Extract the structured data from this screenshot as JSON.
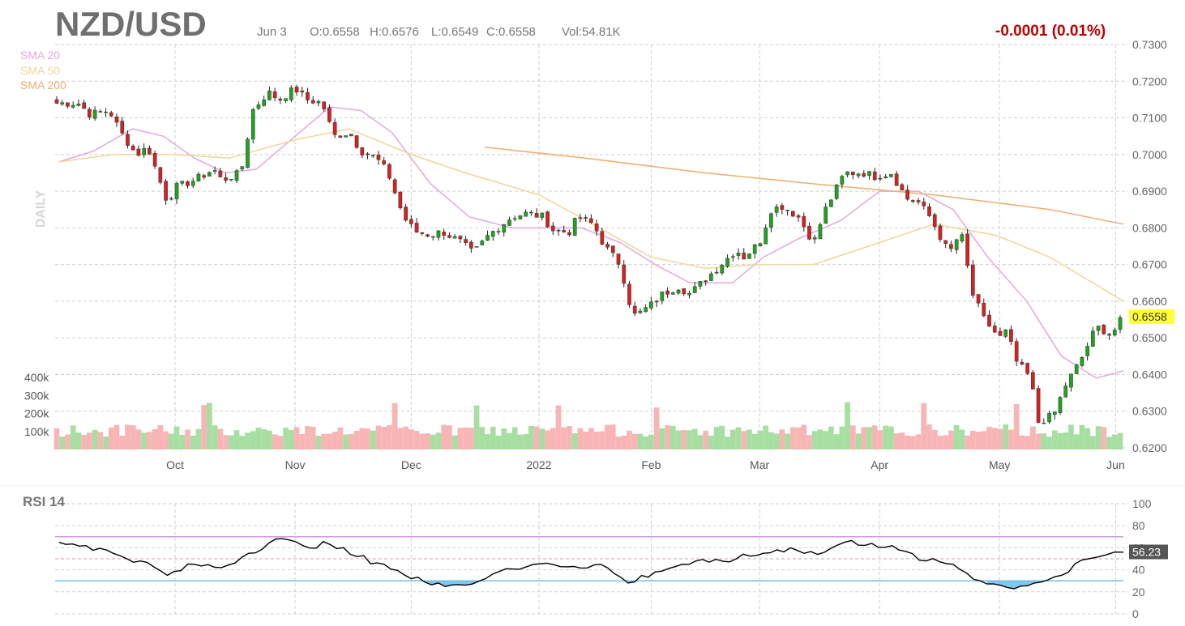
{
  "header": {
    "symbol": "NZD/USD",
    "date": "Jun 3",
    "open": "O:0.6558",
    "high": "H:0.6576",
    "low": "L:0.6549",
    "close": "C:0.6558",
    "volume": "Vol:54.81K",
    "change": "-0.0001 (0.01%)",
    "interval_label": "DAILY",
    "last_price": "0.6558"
  },
  "legend": [
    {
      "label": "SMA 20",
      "color": "#e7a7df"
    },
    {
      "label": "SMA 50",
      "color": "#f2d59a"
    },
    {
      "label": "SMA 200",
      "color": "#f0ac6e"
    }
  ],
  "colors": {
    "up": "#1ea41e",
    "down": "#d72020",
    "vol_up": "#a6dfa1",
    "vol_down": "#f8b5b5",
    "grid": "#cfcfcf",
    "rsi_line": "#000000",
    "rsi_upper": "#c07ad6",
    "rsi_lower": "#4aa8d8",
    "rsi_fill": "#7cc8ef",
    "highlight": "#ffff33",
    "change": "#c00000"
  },
  "chart_data": [
    {
      "type": "candlestick",
      "title": "NZD/USD",
      "x_labels": [
        "Oct",
        "Nov",
        "Dec",
        "2022",
        "Feb",
        "Mar",
        "Apr",
        "May",
        "Jun"
      ],
      "y_ticks": [
        "0.6200",
        "0.6300",
        "0.6400",
        "0.6500",
        "0.6600",
        "0.6700",
        "0.6800",
        "0.6900",
        "0.7000",
        "0.7100",
        "0.7200",
        "0.7300"
      ],
      "ylim": [
        0.62,
        0.73
      ],
      "volume_ticks": [
        "100k",
        "200k",
        "300k",
        "400k"
      ],
      "volume_max": 450000,
      "path_points": [
        [
          "2021-09-06",
          0.714
        ],
        [
          "2021-09-09",
          0.711
        ],
        [
          "2021-09-14",
          0.712
        ],
        [
          "2021-09-17",
          0.706
        ],
        [
          "2021-09-21",
          0.7
        ],
        [
          "2021-09-24",
          0.702
        ],
        [
          "2021-09-29",
          0.687
        ],
        [
          "2021-10-01",
          0.691
        ],
        [
          "2021-10-06",
          0.693
        ],
        [
          "2021-10-11",
          0.696
        ],
        [
          "2021-10-13",
          0.693
        ],
        [
          "2021-10-18",
          0.695
        ],
        [
          "2021-10-21",
          0.712
        ],
        [
          "2021-10-25",
          0.717
        ],
        [
          "2021-10-28",
          0.715
        ],
        [
          "2021-11-01",
          0.718
        ],
        [
          "2021-11-04",
          0.715
        ],
        [
          "2021-11-08",
          0.714
        ],
        [
          "2021-11-11",
          0.705
        ],
        [
          "2021-11-15",
          0.706
        ],
        [
          "2021-11-18",
          0.701
        ],
        [
          "2021-11-22",
          0.699
        ],
        [
          "2021-11-25",
          0.695
        ],
        [
          "2021-11-29",
          0.683
        ],
        [
          "2021-12-02",
          0.679
        ],
        [
          "2021-12-06",
          0.678
        ],
        [
          "2021-12-09",
          0.679
        ],
        [
          "2021-12-14",
          0.676
        ],
        [
          "2021-12-17",
          0.673
        ],
        [
          "2021-12-21",
          0.678
        ],
        [
          "2021-12-27",
          0.683
        ],
        [
          "2021-12-31",
          0.684
        ],
        [
          "2022-01-04",
          0.683
        ],
        [
          "2022-01-07",
          0.679
        ],
        [
          "2022-01-11",
          0.679
        ],
        [
          "2022-01-13",
          0.683
        ],
        [
          "2022-01-17",
          0.681
        ],
        [
          "2022-01-20",
          0.675
        ],
        [
          "2022-01-24",
          0.67
        ],
        [
          "2022-01-27",
          0.657
        ],
        [
          "2022-01-28",
          0.656
        ],
        [
          "2022-02-01",
          0.659
        ],
        [
          "2022-02-04",
          0.662
        ],
        [
          "2022-02-08",
          0.664
        ],
        [
          "2022-02-11",
          0.662
        ],
        [
          "2022-02-15",
          0.666
        ],
        [
          "2022-02-18",
          0.669
        ],
        [
          "2022-02-23",
          0.674
        ],
        [
          "2022-02-25",
          0.672
        ],
        [
          "2022-03-01",
          0.676
        ],
        [
          "2022-03-04",
          0.685
        ],
        [
          "2022-03-07",
          0.686
        ],
        [
          "2022-03-11",
          0.683
        ],
        [
          "2022-03-15",
          0.676
        ],
        [
          "2022-03-18",
          0.685
        ],
        [
          "2022-03-23",
          0.695
        ],
        [
          "2022-03-28",
          0.695
        ],
        [
          "2022-03-31",
          0.694
        ],
        [
          "2022-04-04",
          0.695
        ],
        [
          "2022-04-08",
          0.688
        ],
        [
          "2022-04-11",
          0.687
        ],
        [
          "2022-04-14",
          0.683
        ],
        [
          "2022-04-19",
          0.673
        ],
        [
          "2022-04-22",
          0.679
        ],
        [
          "2022-04-25",
          0.662
        ],
        [
          "2022-04-28",
          0.655
        ],
        [
          "2022-05-02",
          0.65
        ],
        [
          "2022-05-04",
          0.652
        ],
        [
          "2022-05-06",
          0.644
        ],
        [
          "2022-05-10",
          0.639
        ],
        [
          "2022-05-12",
          0.627
        ],
        [
          "2022-05-16",
          0.629
        ],
        [
          "2022-05-19",
          0.637
        ],
        [
          "2022-05-23",
          0.644
        ],
        [
          "2022-05-27",
          0.653
        ],
        [
          "2022-05-31",
          0.651
        ],
        [
          "2022-06-03",
          0.6558
        ]
      ],
      "series": [
        {
          "name": "SMA 20",
          "points": [
            [
              "2021-09-01",
              0.698
            ],
            [
              "2021-09-10",
              0.701
            ],
            [
              "2021-09-20",
              0.707
            ],
            [
              "2021-09-28",
              0.705
            ],
            [
              "2021-10-06",
              0.699
            ],
            [
              "2021-10-14",
              0.695
            ],
            [
              "2021-10-22",
              0.696
            ],
            [
              "2021-11-01",
              0.705
            ],
            [
              "2021-11-10",
              0.713
            ],
            [
              "2021-11-18",
              0.712
            ],
            [
              "2021-11-26",
              0.706
            ],
            [
              "2021-12-06",
              0.692
            ],
            [
              "2021-12-16",
              0.683
            ],
            [
              "2021-12-27",
              0.68
            ],
            [
              "2022-01-05",
              0.68
            ],
            [
              "2022-01-14",
              0.68
            ],
            [
              "2022-01-24",
              0.676
            ],
            [
              "2022-02-02",
              0.67
            ],
            [
              "2022-02-11",
              0.665
            ],
            [
              "2022-02-22",
              0.665
            ],
            [
              "2022-03-02",
              0.672
            ],
            [
              "2022-03-11",
              0.677
            ],
            [
              "2022-03-22",
              0.682
            ],
            [
              "2022-04-01",
              0.69
            ],
            [
              "2022-04-11",
              0.69
            ],
            [
              "2022-04-20",
              0.685
            ],
            [
              "2022-04-29",
              0.672
            ],
            [
              "2022-05-09",
              0.66
            ],
            [
              "2022-05-18",
              0.645
            ],
            [
              "2022-05-27",
              0.639
            ],
            [
              "2022-06-03",
              0.641
            ]
          ]
        },
        {
          "name": "SMA 50",
          "points": [
            [
              "2021-09-01",
              0.698
            ],
            [
              "2021-09-15",
              0.7
            ],
            [
              "2021-10-01",
              0.7
            ],
            [
              "2021-10-15",
              0.699
            ],
            [
              "2021-11-01",
              0.704
            ],
            [
              "2021-11-15",
              0.707
            ],
            [
              "2021-12-01",
              0.7
            ],
            [
              "2021-12-15",
              0.695
            ],
            [
              "2022-01-03",
              0.689
            ],
            [
              "2022-01-17",
              0.681
            ],
            [
              "2022-02-01",
              0.672
            ],
            [
              "2022-02-15",
              0.669
            ],
            [
              "2022-03-01",
              0.67
            ],
            [
              "2022-03-15",
              0.67
            ],
            [
              "2022-04-01",
              0.676
            ],
            [
              "2022-04-15",
              0.681
            ],
            [
              "2022-05-01",
              0.678
            ],
            [
              "2022-05-15",
              0.672
            ],
            [
              "2022-06-03",
              0.66
            ]
          ]
        },
        {
          "name": "SMA 200",
          "points": [
            [
              "2021-12-20",
              0.702
            ],
            [
              "2022-01-15",
              0.699
            ],
            [
              "2022-02-15",
              0.695
            ],
            [
              "2022-03-15",
              0.692
            ],
            [
              "2022-04-15",
              0.689
            ],
            [
              "2022-05-15",
              0.685
            ],
            [
              "2022-06-03",
              0.681
            ]
          ]
        }
      ]
    },
    {
      "type": "line",
      "title": "RSI 14",
      "y_ticks": [
        "0",
        "20",
        "40",
        "60",
        "80",
        "100"
      ],
      "ylim": [
        0,
        100
      ],
      "overbought": 70,
      "oversold": 30,
      "last_value": "56.23",
      "points": [
        [
          "2021-09-01",
          65
        ],
        [
          "2021-09-08",
          62
        ],
        [
          "2021-09-15",
          55
        ],
        [
          "2021-09-22",
          48
        ],
        [
          "2021-09-29",
          35
        ],
        [
          "2021-10-06",
          45
        ],
        [
          "2021-10-13",
          42
        ],
        [
          "2021-10-20",
          55
        ],
        [
          "2021-10-27",
          68
        ],
        [
          "2021-11-03",
          62
        ],
        [
          "2021-11-10",
          63
        ],
        [
          "2021-11-17",
          52
        ],
        [
          "2021-11-24",
          45
        ],
        [
          "2021-12-01",
          32
        ],
        [
          "2021-12-08",
          28
        ],
        [
          "2021-12-15",
          26
        ],
        [
          "2021-12-22",
          36
        ],
        [
          "2022-01-05",
          46
        ],
        [
          "2022-01-12",
          43
        ],
        [
          "2022-01-19",
          45
        ],
        [
          "2022-01-26",
          28
        ],
        [
          "2022-02-02",
          38
        ],
        [
          "2022-02-09",
          45
        ],
        [
          "2022-02-16",
          47
        ],
        [
          "2022-02-23",
          50
        ],
        [
          "2022-03-02",
          55
        ],
        [
          "2022-03-09",
          60
        ],
        [
          "2022-03-16",
          54
        ],
        [
          "2022-03-23",
          65
        ],
        [
          "2022-03-30",
          64
        ],
        [
          "2022-04-06",
          58
        ],
        [
          "2022-04-13",
          48
        ],
        [
          "2022-04-20",
          45
        ],
        [
          "2022-04-27",
          30
        ],
        [
          "2022-05-04",
          24
        ],
        [
          "2022-05-11",
          28
        ],
        [
          "2022-05-18",
          35
        ],
        [
          "2022-05-25",
          50
        ],
        [
          "2022-06-03",
          56
        ]
      ]
    }
  ]
}
